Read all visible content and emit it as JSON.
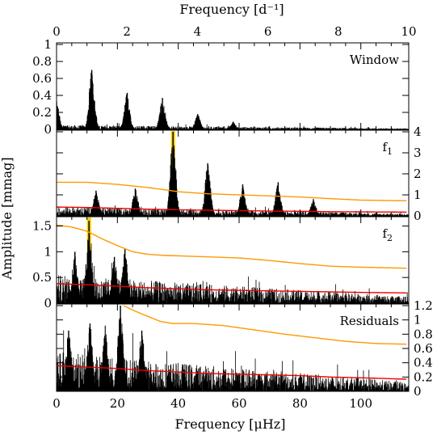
{
  "chart_data": {
    "type": "line",
    "figure": {
      "top_axis_label": "Frequency [d⁻¹]",
      "bottom_axis_label": "Frequency [μHz]",
      "y_axis_label": "Amplitude [mmag]",
      "top_xlim": [
        0,
        10
      ],
      "top_ticks": [
        "0",
        "2",
        "4",
        "6",
        "8",
        "10"
      ],
      "bottom_xlim": [
        0,
        115.74
      ],
      "bottom_ticks": [
        "0",
        "20",
        "40",
        "60",
        "80",
        "100"
      ]
    },
    "panels": [
      {
        "label": "Window",
        "y_side": "left",
        "ylim": [
          0,
          1.0
        ],
        "yticks": [
          "0",
          "0.2",
          "0.4",
          "0.6",
          "0.8",
          "1"
        ],
        "peaks": [
          {
            "x": 0.0,
            "y": 0.33
          },
          {
            "x": 11.6,
            "y": 0.7
          },
          {
            "x": 23.2,
            "y": 0.43
          },
          {
            "x": 34.8,
            "y": 0.37
          },
          {
            "x": 46.4,
            "y": 0.18
          },
          {
            "x": 58.0,
            "y": 0.09
          }
        ],
        "noise_level": 0.05
      },
      {
        "label": "f",
        "label_subscript": "1",
        "y_side": "right",
        "ylim": [
          0,
          4.0
        ],
        "yticks": [
          "0",
          "1",
          "2",
          "3",
          "4"
        ],
        "highlight_x": 38.3,
        "peaks": [
          {
            "x": 13.0,
            "y": 1.2
          },
          {
            "x": 25.9,
            "y": 1.3
          },
          {
            "x": 38.3,
            "y": 4.0
          },
          {
            "x": 49.7,
            "y": 2.5
          },
          {
            "x": 61.2,
            "y": 1.5
          },
          {
            "x": 72.8,
            "y": 1.6
          },
          {
            "x": 84.4,
            "y": 0.8
          }
        ],
        "noise_level": 0.45,
        "orange_curve": {
          "x": [
            0,
            10,
            20,
            30,
            40,
            50,
            60,
            70,
            80,
            90,
            100,
            115
          ],
          "y": [
            1.6,
            1.6,
            1.5,
            1.35,
            1.15,
            1.05,
            1.0,
            0.95,
            0.9,
            0.82,
            0.75,
            0.72
          ]
        },
        "red_curve": {
          "x": [
            0,
            10,
            20,
            30,
            40,
            50,
            60,
            70,
            80,
            90,
            100,
            115
          ],
          "y": [
            0.42,
            0.4,
            0.36,
            0.32,
            0.29,
            0.27,
            0.25,
            0.23,
            0.22,
            0.2,
            0.19,
            0.18
          ]
        }
      },
      {
        "label": "f",
        "label_subscript": "2",
        "y_side": "left",
        "ylim": [
          0,
          1.65
        ],
        "yticks": [
          "0",
          "0.5",
          "1",
          "1.5"
        ],
        "highlight_x": 10.7,
        "peaks": [
          {
            "x": 10.7,
            "y": 1.6
          },
          {
            "x": 22.5,
            "y": 1.05
          },
          {
            "x": 19.0,
            "y": 0.9
          },
          {
            "x": 6.0,
            "y": 1.0
          }
        ],
        "noise_level": 0.55,
        "orange_curve": {
          "x": [
            0,
            5,
            10,
            15,
            20,
            25,
            30,
            35,
            40,
            50,
            60,
            70,
            80,
            90,
            100,
            115
          ],
          "y": [
            1.52,
            1.48,
            1.4,
            1.25,
            1.12,
            1.0,
            0.95,
            0.93,
            0.92,
            0.9,
            0.88,
            0.83,
            0.77,
            0.72,
            0.7,
            0.68
          ]
        },
        "red_curve": {
          "x": [
            0,
            10,
            20,
            30,
            40,
            50,
            60,
            70,
            80,
            90,
            100,
            115
          ],
          "y": [
            0.38,
            0.36,
            0.33,
            0.3,
            0.28,
            0.26,
            0.25,
            0.24,
            0.23,
            0.22,
            0.21,
            0.2
          ]
        }
      },
      {
        "label": "Residuals",
        "y_side": "right",
        "ylim": [
          0,
          1.2
        ],
        "yticks": [
          "0",
          "0.2",
          "0.4",
          "0.6",
          "0.8",
          "1",
          "1.2"
        ],
        "peaks": [
          {
            "x": 21.0,
            "y": 1.2
          },
          {
            "x": 11.0,
            "y": 0.95
          },
          {
            "x": 16.0,
            "y": 0.92
          },
          {
            "x": 28.0,
            "y": 0.85
          },
          {
            "x": 4.0,
            "y": 0.85
          }
        ],
        "noise_level": 0.55,
        "orange_curve": {
          "x": [
            22,
            26,
            30,
            34,
            38,
            45,
            55,
            65,
            75,
            85,
            95,
            105,
            115
          ],
          "y": [
            1.2,
            1.12,
            1.05,
            0.98,
            0.95,
            0.95,
            0.92,
            0.86,
            0.8,
            0.75,
            0.7,
            0.67,
            0.66
          ]
        },
        "red_curve": {
          "x": [
            0,
            10,
            20,
            30,
            40,
            50,
            60,
            70,
            80,
            90,
            100,
            115
          ],
          "y": [
            0.36,
            0.34,
            0.32,
            0.29,
            0.27,
            0.25,
            0.24,
            0.23,
            0.22,
            0.2,
            0.19,
            0.17
          ]
        }
      }
    ],
    "colors": {
      "spectrum": "#000000",
      "significance": "#ff9900",
      "noise": "#ee0000",
      "highlight": "#ffcc00"
    }
  }
}
